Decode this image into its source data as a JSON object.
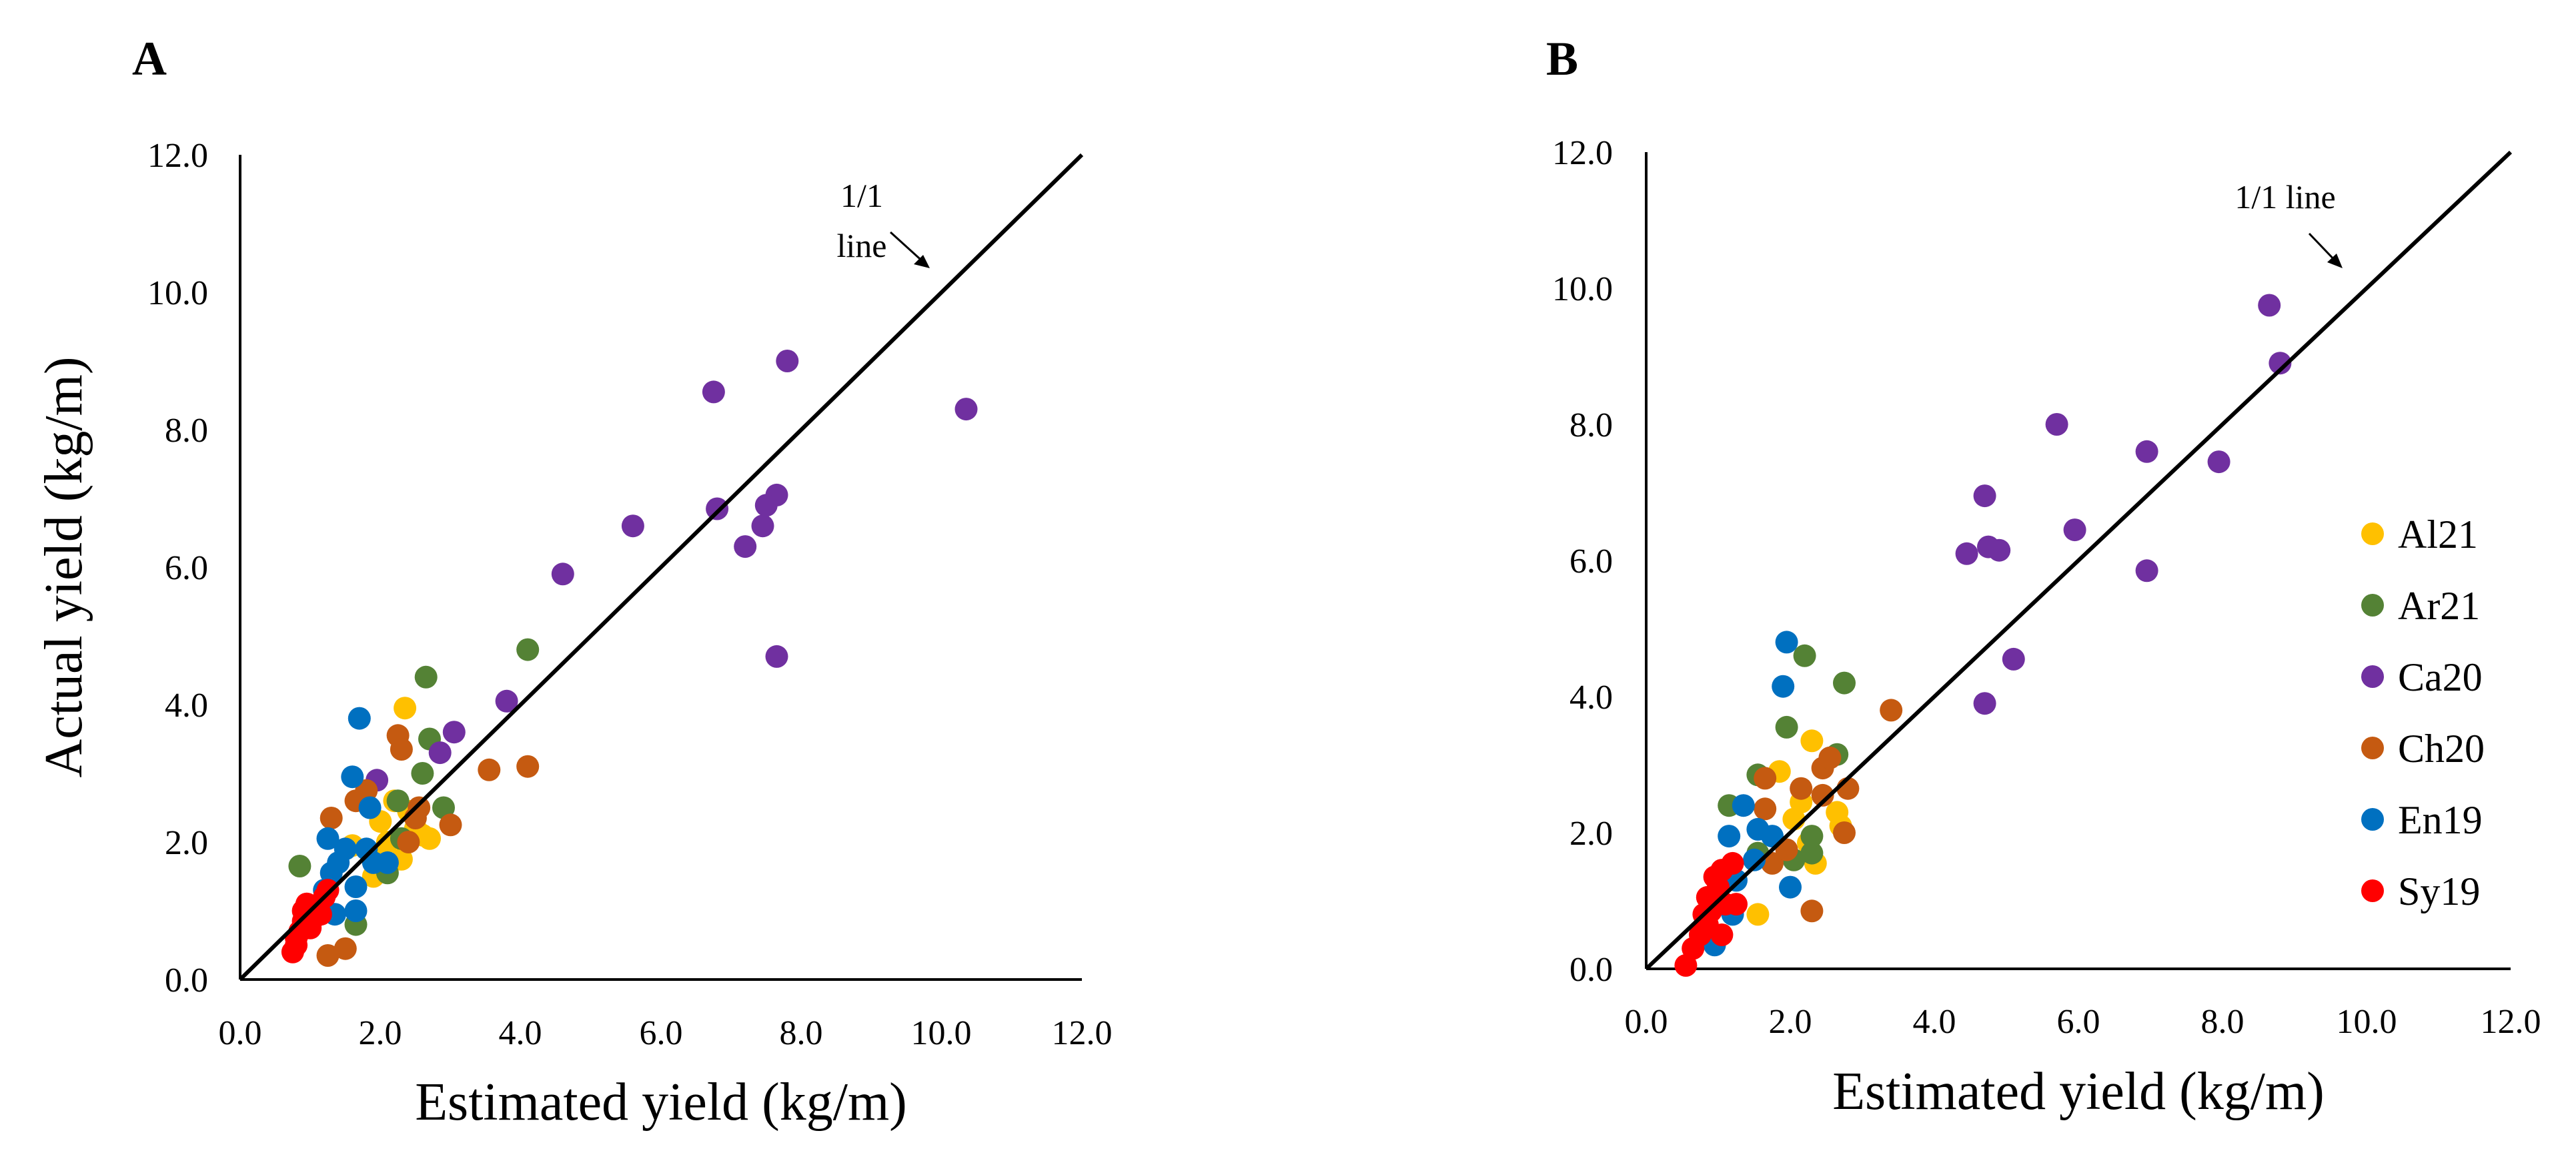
{
  "series_colors": {
    "Al21": "#FFC000",
    "Ar21": "#548235",
    "Ca20": "#7030A0",
    "Ch20": "#C55A11",
    "En19": "#0070C0",
    "Sy19": "#FF0000"
  },
  "chart_data": [
    {
      "type": "scatter",
      "panel_label": "A",
      "xlabel": "Estimated yield (kg/m)",
      "ylabel": "Actual yield (kg/m)",
      "xlim": [
        0,
        12
      ],
      "ylim": [
        0,
        12
      ],
      "x_ticks": [
        "0.0",
        "2.0",
        "4.0",
        "6.0",
        "8.0",
        "10.0",
        "12.0"
      ],
      "y_ticks": [
        "0.0",
        "2.0",
        "4.0",
        "6.0",
        "8.0",
        "10.0",
        "12.0"
      ],
      "reference_line": {
        "from": [
          0,
          0
        ],
        "to": [
          12,
          12
        ]
      },
      "annotation": {
        "lines": [
          "1/1",
          "line"
        ],
        "points_to": [
          9.9,
          10.2
        ]
      },
      "grid": false,
      "legend": null,
      "series": [
        {
          "name": "Al21",
          "points": [
            [
              2.35,
              3.95
            ],
            [
              2.2,
              2.6
            ],
            [
              2.0,
              2.3
            ],
            [
              2.5,
              2.2
            ],
            [
              2.3,
              1.75
            ],
            [
              2.1,
              2.0
            ],
            [
              1.9,
              1.5
            ],
            [
              2.7,
              2.05
            ],
            [
              2.4,
              2.45
            ],
            [
              1.6,
              1.95
            ],
            [
              2.0,
              1.8
            ],
            [
              2.6,
              2.1
            ]
          ]
        },
        {
          "name": "Ar21",
          "points": [
            [
              0.85,
              1.65
            ],
            [
              2.65,
              4.4
            ],
            [
              4.1,
              4.8
            ],
            [
              2.7,
              3.5
            ],
            [
              2.25,
              2.6
            ],
            [
              2.6,
              3.0
            ],
            [
              2.9,
              2.5
            ],
            [
              2.1,
              1.55
            ],
            [
              1.65,
              0.8
            ],
            [
              2.3,
              2.05
            ]
          ]
        },
        {
          "name": "Ca20",
          "points": [
            [
              10.35,
              8.3
            ],
            [
              7.8,
              9.0
            ],
            [
              6.75,
              8.55
            ],
            [
              7.65,
              7.05
            ],
            [
              7.5,
              6.9
            ],
            [
              6.8,
              6.85
            ],
            [
              7.45,
              6.6
            ],
            [
              7.2,
              6.3
            ],
            [
              5.6,
              6.6
            ],
            [
              4.6,
              5.9
            ],
            [
              7.65,
              4.7
            ],
            [
              3.8,
              4.05
            ],
            [
              3.05,
              3.6
            ],
            [
              2.85,
              3.3
            ],
            [
              1.95,
              2.9
            ]
          ]
        },
        {
          "name": "Ch20",
          "points": [
            [
              4.1,
              3.1
            ],
            [
              3.55,
              3.05
            ],
            [
              2.25,
              3.55
            ],
            [
              2.3,
              3.35
            ],
            [
              3.0,
              2.25
            ],
            [
              2.5,
              2.35
            ],
            [
              2.4,
              2.0
            ],
            [
              1.65,
              2.6
            ],
            [
              1.3,
              2.35
            ],
            [
              1.5,
              0.45
            ],
            [
              1.25,
              0.35
            ],
            [
              1.8,
              2.75
            ],
            [
              2.55,
              2.5
            ]
          ]
        },
        {
          "name": "En19",
          "points": [
            [
              1.7,
              3.8
            ],
            [
              1.6,
              2.95
            ],
            [
              1.85,
              2.5
            ],
            [
              1.25,
              2.05
            ],
            [
              1.4,
              1.7
            ],
            [
              1.2,
              1.3
            ],
            [
              1.1,
              1.0
            ],
            [
              1.65,
              1.35
            ],
            [
              1.65,
              1.0
            ],
            [
              1.9,
              1.7
            ],
            [
              1.5,
              1.9
            ],
            [
              2.1,
              1.7
            ],
            [
              1.3,
              1.55
            ],
            [
              1.8,
              1.9
            ],
            [
              1.35,
              0.95
            ],
            [
              1.0,
              0.8
            ]
          ]
        },
        {
          "name": "Sy19",
          "points": [
            [
              0.75,
              0.4
            ],
            [
              0.8,
              0.5
            ],
            [
              0.8,
              0.6
            ],
            [
              0.85,
              0.7
            ],
            [
              0.9,
              0.85
            ],
            [
              0.95,
              0.95
            ],
            [
              1.0,
              1.0
            ],
            [
              0.95,
              1.1
            ],
            [
              1.05,
              0.9
            ],
            [
              1.1,
              1.05
            ],
            [
              1.0,
              0.75
            ],
            [
              1.2,
              1.2
            ],
            [
              1.25,
              1.3
            ],
            [
              0.9,
              1.0
            ],
            [
              1.15,
              0.95
            ]
          ]
        }
      ]
    },
    {
      "type": "scatter",
      "panel_label": "B",
      "xlabel": "Estimated yield (kg/m)",
      "ylabel": "",
      "xlim": [
        0,
        12
      ],
      "ylim": [
        0,
        12
      ],
      "x_ticks": [
        "0.0",
        "2.0",
        "4.0",
        "6.0",
        "8.0",
        "10.0",
        "12.0"
      ],
      "y_ticks": [
        "0.0",
        "2.0",
        "4.0",
        "6.0",
        "8.0",
        "10.0",
        "12.0"
      ],
      "reference_line": {
        "from": [
          0,
          0
        ],
        "to": [
          12,
          12
        ]
      },
      "annotation": {
        "lines": [
          "1/1 line"
        ],
        "points_to": [
          10.0,
          10.3
        ]
      },
      "grid": false,
      "legend": {
        "placement": "right",
        "entries": [
          "Al21",
          "Ar21",
          "Ca20",
          "Ch20",
          "En19",
          "Sy19"
        ]
      },
      "series": [
        {
          "name": "Al21",
          "points": [
            [
              2.3,
              3.35
            ],
            [
              1.85,
              2.9
            ],
            [
              2.15,
              2.45
            ],
            [
              2.65,
              2.3
            ],
            [
              2.7,
              2.1
            ],
            [
              2.35,
              1.55
            ],
            [
              1.55,
              0.8
            ],
            [
              2.25,
              1.85
            ],
            [
              2.05,
              2.2
            ]
          ]
        },
        {
          "name": "Ar21",
          "points": [
            [
              2.2,
              4.6
            ],
            [
              2.75,
              4.2
            ],
            [
              1.95,
              3.55
            ],
            [
              2.65,
              3.15
            ],
            [
              1.55,
              2.85
            ],
            [
              1.15,
              2.4
            ],
            [
              2.3,
              1.7
            ],
            [
              2.3,
              1.95
            ],
            [
              1.55,
              1.7
            ],
            [
              2.05,
              1.6
            ]
          ]
        },
        {
          "name": "Ca20",
          "points": [
            [
              8.65,
              9.75
            ],
            [
              8.8,
              8.9
            ],
            [
              5.7,
              8.0
            ],
            [
              6.95,
              7.6
            ],
            [
              7.95,
              7.45
            ],
            [
              4.7,
              6.95
            ],
            [
              5.95,
              6.45
            ],
            [
              4.75,
              6.2
            ],
            [
              4.9,
              6.15
            ],
            [
              4.45,
              6.1
            ],
            [
              6.95,
              5.85
            ],
            [
              5.1,
              4.55
            ],
            [
              4.7,
              3.9
            ]
          ]
        },
        {
          "name": "Ch20",
          "points": [
            [
              3.4,
              3.8
            ],
            [
              2.45,
              2.95
            ],
            [
              2.55,
              3.1
            ],
            [
              2.8,
              2.65
            ],
            [
              1.65,
              2.8
            ],
            [
              2.15,
              2.65
            ],
            [
              1.65,
              2.35
            ],
            [
              2.45,
              2.55
            ],
            [
              2.75,
              2.0
            ],
            [
              2.3,
              0.85
            ],
            [
              1.75,
              1.55
            ],
            [
              1.95,
              1.75
            ]
          ]
        },
        {
          "name": "En19",
          "points": [
            [
              1.95,
              4.8
            ],
            [
              1.9,
              4.15
            ],
            [
              1.35,
              2.4
            ],
            [
              1.55,
              2.05
            ],
            [
              1.75,
              1.95
            ],
            [
              1.15,
              1.95
            ],
            [
              2.0,
              1.2
            ],
            [
              1.2,
              0.8
            ],
            [
              0.95,
              0.35
            ],
            [
              1.25,
              1.3
            ],
            [
              1.5,
              1.6
            ]
          ]
        },
        {
          "name": "Sy19",
          "points": [
            [
              0.55,
              0.05
            ],
            [
              0.65,
              0.3
            ],
            [
              0.75,
              0.5
            ],
            [
              0.85,
              0.65
            ],
            [
              0.9,
              0.85
            ],
            [
              0.95,
              1.0
            ],
            [
              1.0,
              1.2
            ],
            [
              1.05,
              1.45
            ],
            [
              1.2,
              1.55
            ],
            [
              0.85,
              1.05
            ],
            [
              1.1,
              0.95
            ],
            [
              1.25,
              0.95
            ],
            [
              0.95,
              1.35
            ],
            [
              1.05,
              0.5
            ],
            [
              0.8,
              0.8
            ]
          ]
        }
      ]
    }
  ]
}
